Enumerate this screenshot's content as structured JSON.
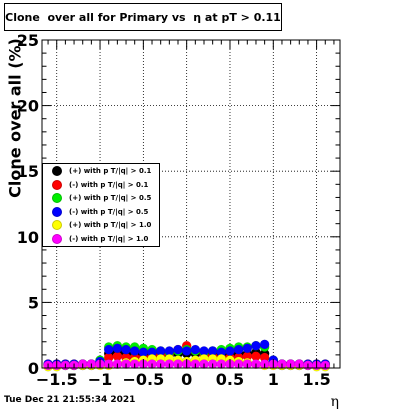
{
  "chart_data": {
    "type": "scatter",
    "title": "Clone  over all for Primary vs  η at pT > 0.11",
    "xlabel": "η",
    "ylabel": "Clone  over all (%)",
    "xlim": [
      -1.67,
      1.77
    ],
    "ylim": [
      0,
      25
    ],
    "xticks": [
      -1.5,
      -1,
      -0.5,
      0,
      0.5,
      1,
      1.5
    ],
    "xtick_labels": [
      "−1.5",
      "−1",
      "−0.5",
      "0",
      "0.5",
      "1",
      "1.5"
    ],
    "yticks": [
      0,
      5,
      10,
      15,
      20,
      25
    ],
    "ytick_labels": [
      "0",
      "5",
      "10",
      "15",
      "20",
      "25"
    ],
    "grid": true,
    "legend_position": "middle-left",
    "x": [
      -1.6,
      -1.5,
      -1.4,
      -1.3,
      -1.2,
      -1.1,
      -1.0,
      -0.9,
      -0.8,
      -0.7,
      -0.6,
      -0.5,
      -0.4,
      -0.3,
      -0.2,
      -0.1,
      0.0,
      0.1,
      0.2,
      0.3,
      0.4,
      0.5,
      0.6,
      0.7,
      0.8,
      0.9,
      1.0,
      1.1,
      1.2,
      1.3,
      1.4,
      1.5,
      1.6
    ],
    "series": [
      {
        "name": "(+) with pT/|q| > 0.1",
        "color": "#000000",
        "values": [
          0.2,
          0.2,
          0.2,
          0.2,
          0.2,
          0.2,
          0.5,
          1.1,
          1.2,
          1.1,
          1.1,
          1.0,
          1.0,
          1.0,
          1.0,
          1.1,
          1.1,
          1.1,
          1.0,
          1.0,
          1.0,
          1.0,
          1.1,
          1.1,
          1.2,
          1.1,
          0.5,
          0.2,
          0.2,
          0.2,
          0.2,
          0.2,
          0.2
        ]
      },
      {
        "name": "(-) with pT/|q| > 0.1",
        "color": "#ff0000",
        "values": [
          0.3,
          0.3,
          0.3,
          0.3,
          0.3,
          0.3,
          0.4,
          0.8,
          0.9,
          0.8,
          0.8,
          0.8,
          0.9,
          1.0,
          1.1,
          1.4,
          1.7,
          1.3,
          1.0,
          0.9,
          0.8,
          0.8,
          0.8,
          0.9,
          0.9,
          0.8,
          0.4,
          0.3,
          0.3,
          0.3,
          0.3,
          0.3,
          0.3
        ]
      },
      {
        "name": "(+) with pT/|q| > 0.5",
        "color": "#00ee00",
        "values": [
          0.2,
          0.2,
          0.2,
          0.2,
          0.2,
          0.2,
          0.6,
          1.6,
          1.7,
          1.6,
          1.6,
          1.5,
          1.4,
          1.3,
          1.2,
          1.3,
          1.4,
          1.3,
          1.2,
          1.3,
          1.4,
          1.5,
          1.6,
          1.6,
          1.7,
          1.6,
          0.6,
          0.2,
          0.2,
          0.2,
          0.2,
          0.2,
          0.2
        ]
      },
      {
        "name": "(-) with pT/|q| > 0.5",
        "color": "#0000ff",
        "values": [
          0.3,
          0.3,
          0.3,
          0.3,
          0.3,
          0.3,
          0.5,
          1.4,
          1.5,
          1.4,
          1.3,
          1.2,
          1.2,
          1.3,
          1.3,
          1.4,
          1.3,
          1.4,
          1.3,
          1.3,
          1.2,
          1.3,
          1.4,
          1.5,
          1.7,
          1.8,
          0.6,
          0.3,
          0.3,
          0.3,
          0.3,
          0.3,
          0.3
        ]
      },
      {
        "name": "(+) with pT/|q| > 1.0",
        "color": "#ffff00",
        "values": [
          0.1,
          0.1,
          0.2,
          0.2,
          0.2,
          0.2,
          0.2,
          0.2,
          0.3,
          0.4,
          0.5,
          0.6,
          0.7,
          0.7,
          0.7,
          0.6,
          0.5,
          0.6,
          0.7,
          0.7,
          0.7,
          0.6,
          0.5,
          0.4,
          0.3,
          0.2,
          0.2,
          0.2,
          0.2,
          0.2,
          0.2,
          0.1,
          0.1
        ]
      },
      {
        "name": "(-) with pT/|q| > 1.0",
        "color": "#ff00ff",
        "values": [
          0.2,
          0.2,
          0.2,
          0.2,
          0.3,
          0.3,
          0.3,
          0.3,
          0.3,
          0.3,
          0.3,
          0.3,
          0.3,
          0.3,
          0.3,
          0.3,
          0.3,
          0.3,
          0.3,
          0.3,
          0.3,
          0.3,
          0.3,
          0.3,
          0.3,
          0.3,
          0.3,
          0.3,
          0.3,
          0.3,
          0.2,
          0.2,
          0.2
        ]
      }
    ]
  },
  "legend": {
    "items": [
      {
        "label": "(+) with p T/|q| > 0.1",
        "color": "#000000"
      },
      {
        "label": "(-) with p T/|q| > 0.1",
        "color": "#ff0000"
      },
      {
        "label": "(+) with p T/|q| > 0.5",
        "color": "#00ee00"
      },
      {
        "label": "(-) with p T/|q| > 0.5",
        "color": "#0000ff"
      },
      {
        "label": "(+) with p T/|q| > 1.0",
        "color": "#ffff00"
      },
      {
        "label": "(-) with p T/|q| > 1.0",
        "color": "#ff00ff"
      }
    ]
  },
  "timestamp": "Tue Dec 21 21:55:34 2021"
}
